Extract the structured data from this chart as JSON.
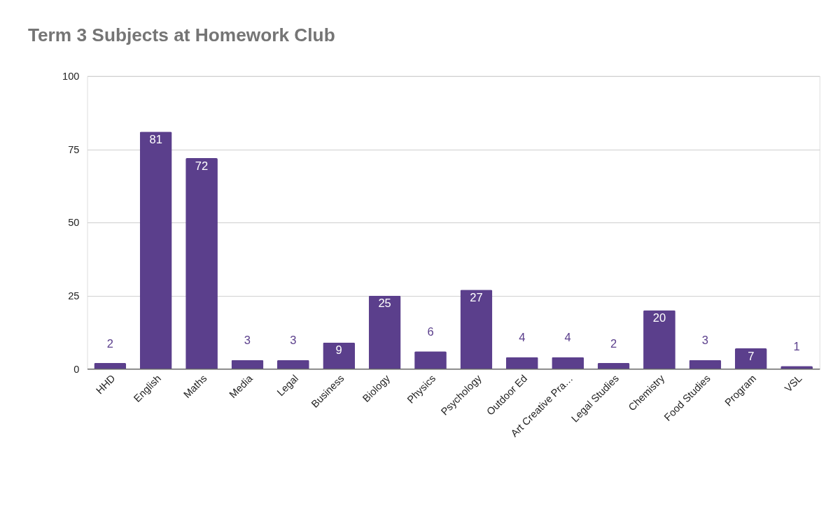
{
  "chart_data": {
    "type": "bar",
    "title": "Term 3 Subjects at Homework Club",
    "categories": [
      "HHD",
      "English",
      "Maths",
      "Media",
      "Legal",
      "Business",
      "Biology",
      "Physics",
      "Psychology",
      "Outdoor Ed",
      "Art Creative Pra…",
      "Legal Studies",
      "Chemistry",
      "Food Studies",
      "Program",
      "VSL"
    ],
    "values": [
      2,
      81,
      72,
      3,
      3,
      9,
      25,
      6,
      27,
      4,
      4,
      2,
      20,
      3,
      7,
      1
    ],
    "color": "#5b3f8c",
    "ylim": [
      0,
      100
    ],
    "yticks": [
      0,
      25,
      50,
      75,
      100
    ],
    "grid": "y",
    "data_labels": true
  }
}
